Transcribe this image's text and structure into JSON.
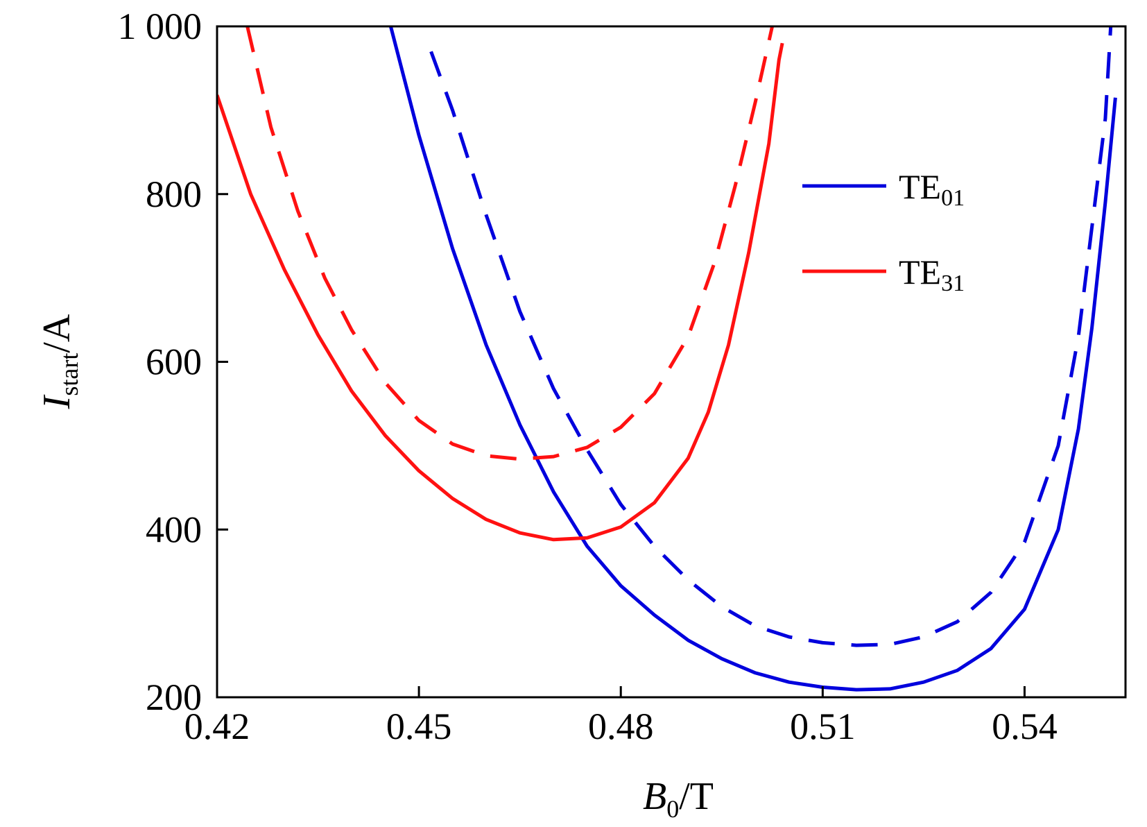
{
  "chart_data": {
    "type": "line",
    "title": "",
    "xlabel": {
      "main": "B",
      "sub": "0",
      "unit": "/T"
    },
    "ylabel": {
      "main": "I",
      "sub": "start",
      "unit": "/A"
    },
    "xlim": [
      0.42,
      0.555
    ],
    "ylim": [
      200,
      1000
    ],
    "xticks": [
      0.42,
      0.45,
      0.48,
      0.51,
      0.54
    ],
    "xtick_labels": [
      "0.42",
      "0.45",
      "0.48",
      "0.51",
      "0.54"
    ],
    "yticks": [
      200,
      400,
      600,
      800,
      1000
    ],
    "ytick_labels": [
      "200",
      "400",
      "600",
      "800",
      "1 000"
    ],
    "grid": false,
    "legend": {
      "placement": "upper-right",
      "entries": [
        {
          "main": "TE",
          "sub": "01",
          "color": "#0000dd"
        },
        {
          "main": "TE",
          "sub": "31",
          "color": "#ff1111"
        }
      ]
    },
    "series": [
      {
        "mode": "TE01",
        "style": "solid",
        "color": "#0000dd",
        "points": [
          [
            0.4458,
            1000
          ],
          [
            0.45,
            870
          ],
          [
            0.455,
            735
          ],
          [
            0.46,
            620
          ],
          [
            0.465,
            525
          ],
          [
            0.47,
            445
          ],
          [
            0.475,
            380
          ],
          [
            0.48,
            333
          ],
          [
            0.485,
            298
          ],
          [
            0.49,
            268
          ],
          [
            0.495,
            246
          ],
          [
            0.5,
            229
          ],
          [
            0.505,
            218
          ],
          [
            0.51,
            212
          ],
          [
            0.515,
            209
          ],
          [
            0.52,
            210
          ],
          [
            0.525,
            218
          ],
          [
            0.53,
            232
          ],
          [
            0.535,
            258
          ],
          [
            0.54,
            305
          ],
          [
            0.545,
            400
          ],
          [
            0.548,
            520
          ],
          [
            0.55,
            640
          ],
          [
            0.552,
            790
          ],
          [
            0.5535,
            915
          ]
        ]
      },
      {
        "mode": "TE01",
        "style": "dashed",
        "color": "#0000dd",
        "points": [
          [
            0.4518,
            970
          ],
          [
            0.455,
            900
          ],
          [
            0.46,
            775
          ],
          [
            0.465,
            660
          ],
          [
            0.47,
            568
          ],
          [
            0.475,
            495
          ],
          [
            0.48,
            430
          ],
          [
            0.485,
            380
          ],
          [
            0.49,
            340
          ],
          [
            0.495,
            308
          ],
          [
            0.5,
            285
          ],
          [
            0.505,
            272
          ],
          [
            0.51,
            265
          ],
          [
            0.515,
            262
          ],
          [
            0.52,
            263
          ],
          [
            0.525,
            272
          ],
          [
            0.53,
            290
          ],
          [
            0.535,
            325
          ],
          [
            0.54,
            385
          ],
          [
            0.545,
            500
          ],
          [
            0.548,
            630
          ],
          [
            0.55,
            760
          ],
          [
            0.552,
            890
          ],
          [
            0.5528,
            1000
          ]
        ]
      },
      {
        "mode": "TE31",
        "style": "solid",
        "color": "#ff1111",
        "points": [
          [
            0.42,
            918
          ],
          [
            0.425,
            800
          ],
          [
            0.43,
            710
          ],
          [
            0.435,
            632
          ],
          [
            0.44,
            565
          ],
          [
            0.445,
            512
          ],
          [
            0.45,
            470
          ],
          [
            0.455,
            437
          ],
          [
            0.46,
            412
          ],
          [
            0.465,
            396
          ],
          [
            0.47,
            388
          ],
          [
            0.475,
            390
          ],
          [
            0.48,
            403
          ],
          [
            0.485,
            432
          ],
          [
            0.49,
            485
          ],
          [
            0.493,
            540
          ],
          [
            0.496,
            620
          ],
          [
            0.499,
            730
          ],
          [
            0.502,
            860
          ],
          [
            0.5035,
            960
          ],
          [
            0.504,
            980
          ]
        ]
      },
      {
        "mode": "TE31",
        "style": "dashed",
        "color": "#ff1111",
        "points": [
          [
            0.4245,
            1000
          ],
          [
            0.428,
            880
          ],
          [
            0.432,
            780
          ],
          [
            0.436,
            700
          ],
          [
            0.44,
            638
          ],
          [
            0.445,
            575
          ],
          [
            0.45,
            530
          ],
          [
            0.455,
            502
          ],
          [
            0.46,
            488
          ],
          [
            0.465,
            484
          ],
          [
            0.47,
            487
          ],
          [
            0.475,
            498
          ],
          [
            0.48,
            522
          ],
          [
            0.485,
            562
          ],
          [
            0.49,
            630
          ],
          [
            0.494,
            720
          ],
          [
            0.497,
            810
          ],
          [
            0.5,
            910
          ],
          [
            0.5025,
            1000
          ]
        ]
      }
    ]
  }
}
